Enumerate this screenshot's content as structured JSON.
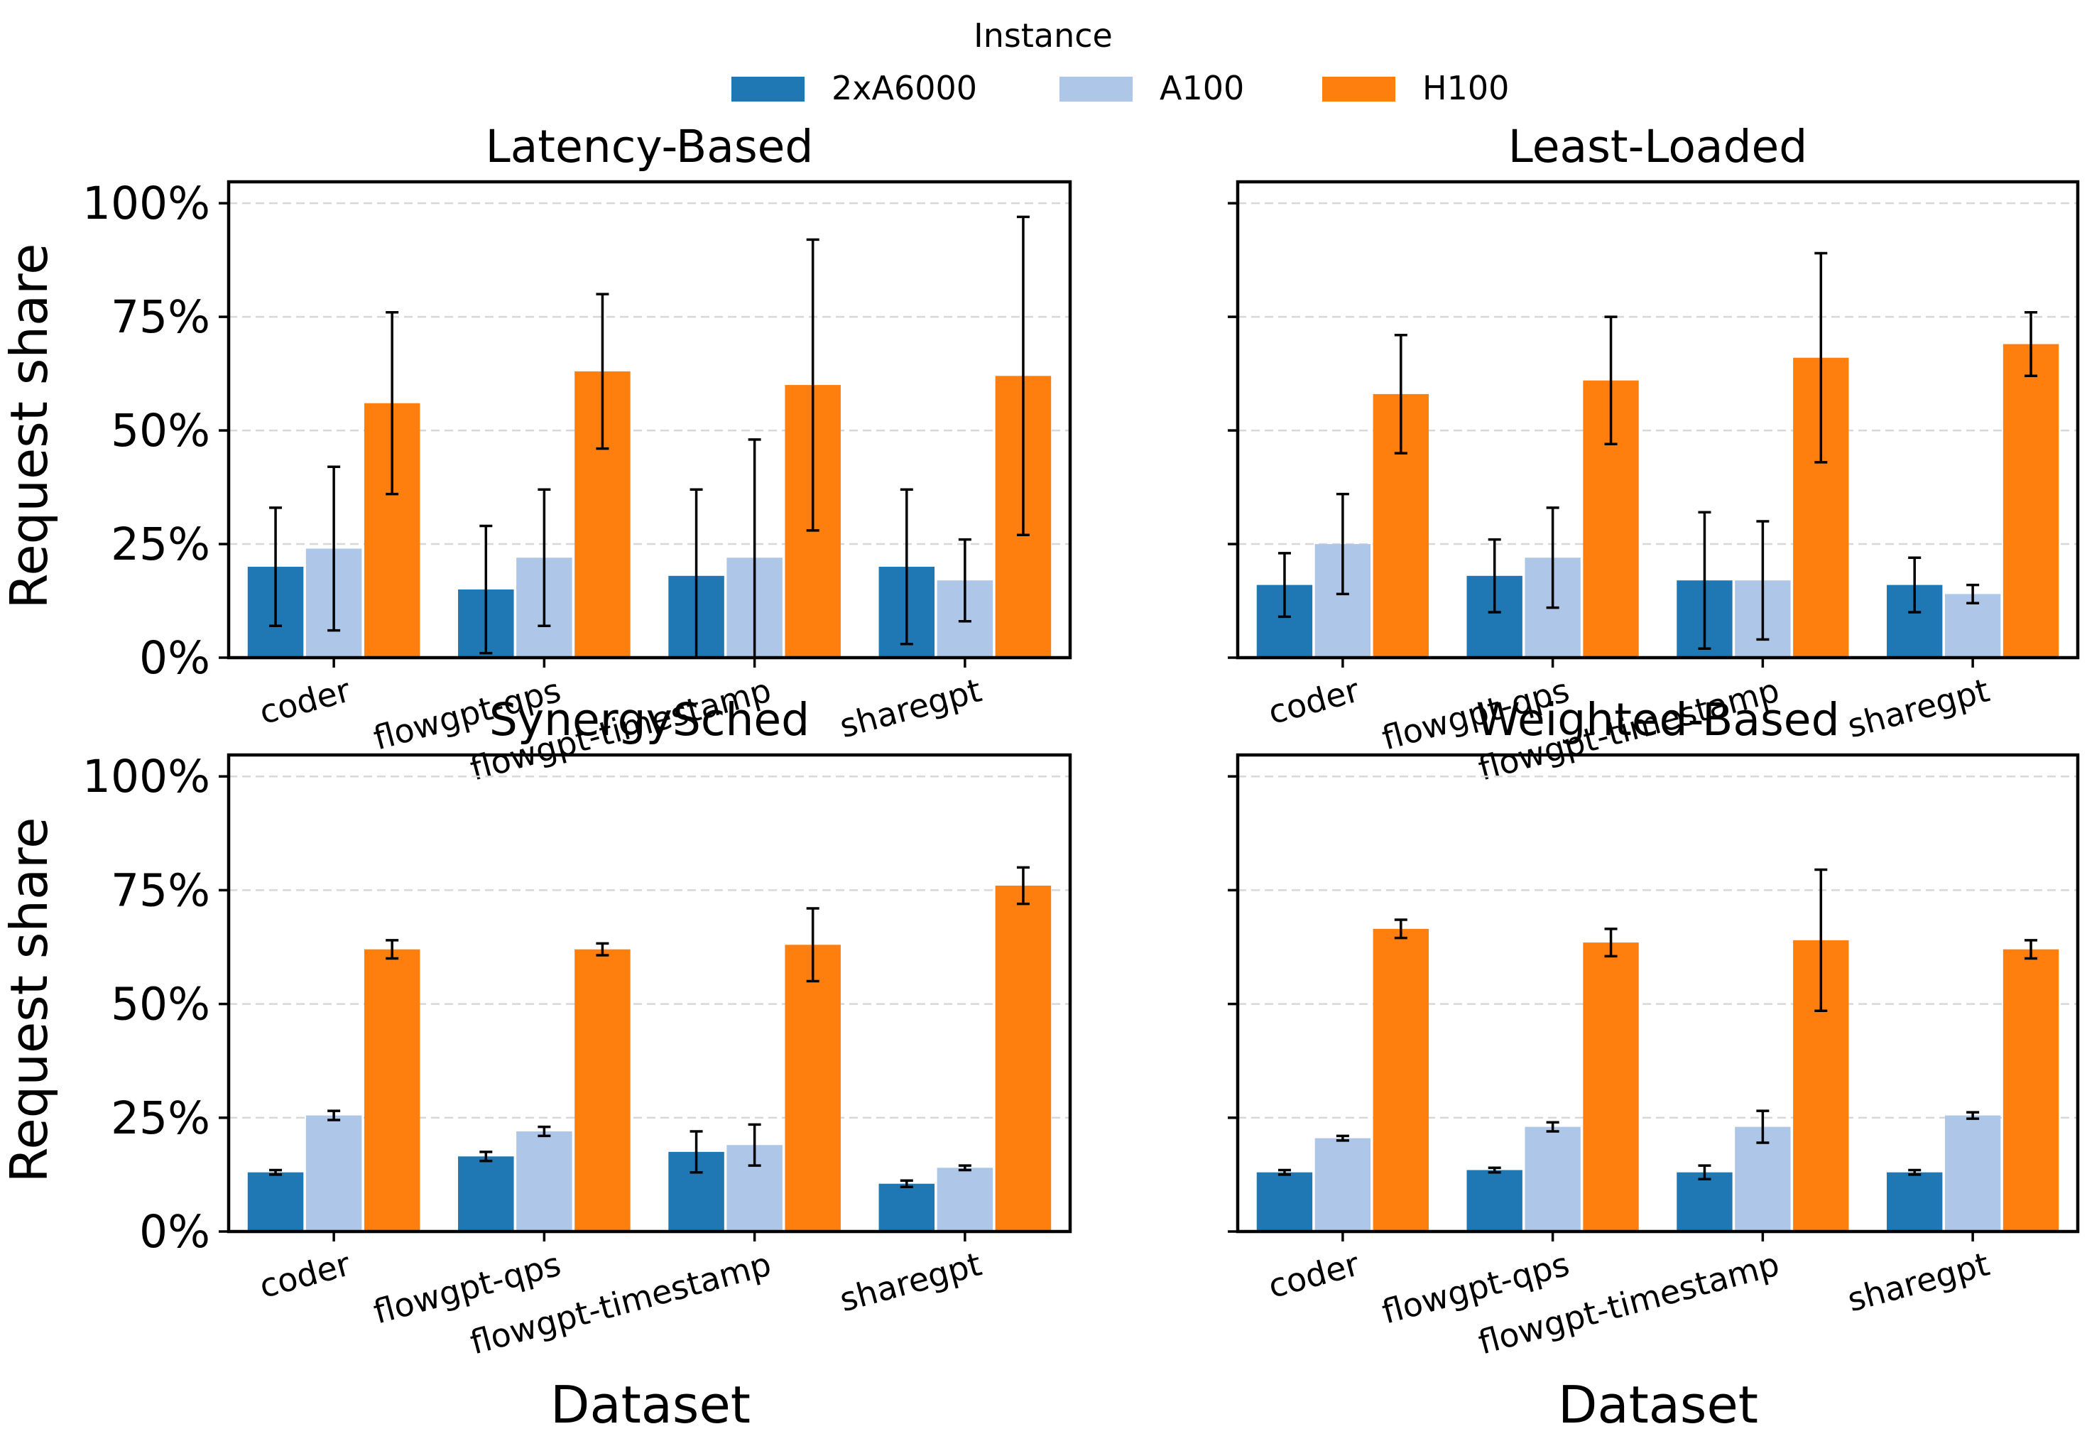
{
  "legend": {
    "title": "Instance",
    "entries": [
      {
        "label": "2xA6000",
        "color": "#1f77b4"
      },
      {
        "label": "A100",
        "color": "#aec7e8"
      },
      {
        "label": "H100",
        "color": "#ff7f0e"
      }
    ]
  },
  "axis_labels": {
    "y": "Request share",
    "x": "Dataset"
  },
  "chart_data": [
    {
      "type": "bar",
      "title": "Latency-Based",
      "categories": [
        "coder",
        "flowgpt-qps",
        "flowgpt-timestamp",
        "sharegpt"
      ],
      "yticks": [
        "0%",
        "25%",
        "50%",
        "75%",
        "100%"
      ],
      "ylim": [
        0,
        100
      ],
      "series": [
        {
          "name": "2xA6000",
          "values": [
            20,
            15,
            18,
            20
          ],
          "err": [
            13,
            14,
            19,
            17
          ]
        },
        {
          "name": "A100",
          "values": [
            24,
            22,
            22,
            17
          ],
          "err": [
            18,
            15,
            26,
            9
          ]
        },
        {
          "name": "H100",
          "values": [
            56,
            63,
            60,
            62
          ],
          "err": [
            20,
            17,
            32,
            35
          ]
        }
      ]
    },
    {
      "type": "bar",
      "title": "Least-Loaded",
      "categories": [
        "coder",
        "flowgpt-qps",
        "flowgpt-timestamp",
        "sharegpt"
      ],
      "yticks": [
        "0%",
        "25%",
        "50%",
        "75%",
        "100%"
      ],
      "ylim": [
        0,
        100
      ],
      "series": [
        {
          "name": "2xA6000",
          "values": [
            16,
            18,
            17,
            16
          ],
          "err": [
            7,
            8,
            15,
            6
          ]
        },
        {
          "name": "A100",
          "values": [
            25,
            22,
            17,
            14
          ],
          "err": [
            11,
            11,
            13,
            2
          ]
        },
        {
          "name": "H100",
          "values": [
            58,
            61,
            66,
            69
          ],
          "err": [
            13,
            14,
            23,
            7
          ]
        }
      ]
    },
    {
      "type": "bar",
      "title": "SynergySched",
      "categories": [
        "coder",
        "flowgpt-qps",
        "flowgpt-timestamp",
        "sharegpt"
      ],
      "yticks": [
        "0%",
        "25%",
        "50%",
        "75%",
        "100%"
      ],
      "ylim": [
        0,
        100
      ],
      "series": [
        {
          "name": "2xA6000",
          "values": [
            13,
            16.5,
            17.5,
            10.5
          ],
          "err": [
            0.5,
            1,
            4.5,
            0.7
          ]
        },
        {
          "name": "A100",
          "values": [
            25.5,
            22,
            19,
            14
          ],
          "err": [
            1,
            1,
            4.5,
            0.5
          ]
        },
        {
          "name": "H100",
          "values": [
            62,
            62,
            63,
            76
          ],
          "err": [
            2,
            1.3,
            8,
            4
          ]
        }
      ]
    },
    {
      "type": "bar",
      "title": "Weighted-Based",
      "categories": [
        "coder",
        "flowgpt-qps",
        "flowgpt-timestamp",
        "sharegpt"
      ],
      "yticks": [
        "0%",
        "25%",
        "50%",
        "75%",
        "100%"
      ],
      "ylim": [
        0,
        100
      ],
      "series": [
        {
          "name": "2xA6000",
          "values": [
            13,
            13.5,
            13,
            13
          ],
          "err": [
            0.5,
            0.5,
            1.5,
            0.5
          ]
        },
        {
          "name": "A100",
          "values": [
            20.5,
            23,
            23,
            25.5
          ],
          "err": [
            0.5,
            1,
            3.5,
            0.7
          ]
        },
        {
          "name": "H100",
          "values": [
            66.5,
            63.5,
            64,
            62
          ],
          "err": [
            2,
            3,
            15.5,
            2
          ]
        }
      ]
    }
  ]
}
